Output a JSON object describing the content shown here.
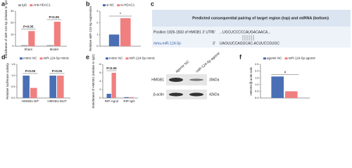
{
  "chart_data": [
    {
      "type": "bar",
      "panel": "a",
      "y_label": "Enrichment of miR-124-5p (relative to IgG)",
      "categories": [
        "Sham",
        "Model"
      ],
      "series": [
        {
          "name": "IgG",
          "color": "#a6a6a6",
          "values": [
            1,
            1
          ]
        },
        {
          "name": "Anti-HDAC1",
          "color": "#f08080",
          "values": [
            13,
            21
          ]
        }
      ],
      "ylim": [
        0,
        30
      ],
      "yticks": [
        0,
        10,
        20,
        30
      ],
      "annotations": [
        "P<0.05",
        "P<0.05"
      ]
    },
    {
      "type": "bar",
      "panel": "b",
      "y_label": "Relative miR-124-5p expression",
      "categories": [
        null
      ],
      "series": [
        {
          "name": "si-NC",
          "color": "#4a6fb5",
          "values": [
            1
          ]
        },
        {
          "name": "si-HDAC1",
          "color": "#f08080",
          "values": [
            2.4
          ]
        }
      ],
      "ylim": [
        0,
        3
      ],
      "yticks": [
        0,
        1,
        2,
        3
      ],
      "annotations": [
        "*"
      ]
    },
    {
      "type": "bar",
      "panel": "d",
      "y_label": "Relative luciferase activity",
      "categories": [
        "HMGB1-WT",
        "HMGB1-MUT"
      ],
      "series": [
        {
          "name": "mimic NC",
          "color": "#4a6fb5",
          "values": [
            1,
            1
          ]
        },
        {
          "name": "miR-124-5p mimic",
          "color": "#f08080",
          "values": [
            0.45,
            1
          ]
        }
      ],
      "ylim": [
        0,
        1.5
      ],
      "yticks": [
        {
          "value": 0,
          "label": "0.0"
        },
        {
          "value": 0.5,
          "label": "0.5"
        },
        {
          "value": 1,
          "label": "1.0"
        },
        {
          "value": 1.5,
          "label": "1.5"
        }
      ],
      "annotations": [
        "P<0.05",
        "P>0.05"
      ]
    },
    {
      "type": "bar",
      "panel": "e",
      "y_label": "Enrichment of HMGB1 (relative to IgG)",
      "categories": [
        "RIP-Ago2",
        "RIP-IgG"
      ],
      "series": [
        {
          "name": "mimic NC",
          "color": "#4a6fb5",
          "values": [
            1,
            0.2
          ]
        },
        {
          "name": "miR-124-5p mimic",
          "color": "#f08080",
          "values": [
            6,
            0.2
          ]
        }
      ],
      "ylim": [
        0,
        8
      ],
      "yticks": [
        0,
        2,
        4,
        6,
        8
      ],
      "annotations": [
        "P<0.05"
      ]
    },
    {
      "type": "bar",
      "panel": "f",
      "y_label": "HMGB1/β-actin ratio",
      "categories": [
        null
      ],
      "series": [
        {
          "name": "agomir NC",
          "color": "#4a6fb5",
          "values": [
            1.6
          ]
        },
        {
          "name": "miR-124-5p agomir",
          "color": "#f08080",
          "values": [
            0.5
          ]
        }
      ],
      "ylim": [
        0,
        2.5
      ],
      "yticks": [
        {
          "value": 0,
          "label": "0.0"
        },
        {
          "value": 0.5,
          "label": "0.5"
        },
        {
          "value": 1,
          "label": "1.0"
        },
        {
          "value": 1.5,
          "label": "1.5"
        },
        {
          "value": 2,
          "label": "2.0"
        },
        {
          "value": 2.5,
          "label": "2.5"
        }
      ],
      "annotations": [
        "#"
      ]
    }
  ],
  "table": {
    "panel": "c",
    "header": "Predicted consequential pairing of target region (top) and miRNA (bottom)",
    "rows": [
      [
        "Position 1826-1833 of HMGB1 3' UTR",
        "5'",
        "...UGCUCCCCCAUGACAACA..."
      ],
      [
        "mmu-miR-124-5p",
        "3'",
        "UAGUUCCAGGCAC-ACUUCCGUGC"
      ]
    ]
  },
  "blot": {
    "columns": [
      "agomir NC",
      "miR-124-5p agomir"
    ],
    "rows": [
      [
        "HMGB1",
        "30kDa"
      ],
      [
        "β-actin",
        "42kDa"
      ]
    ]
  }
}
